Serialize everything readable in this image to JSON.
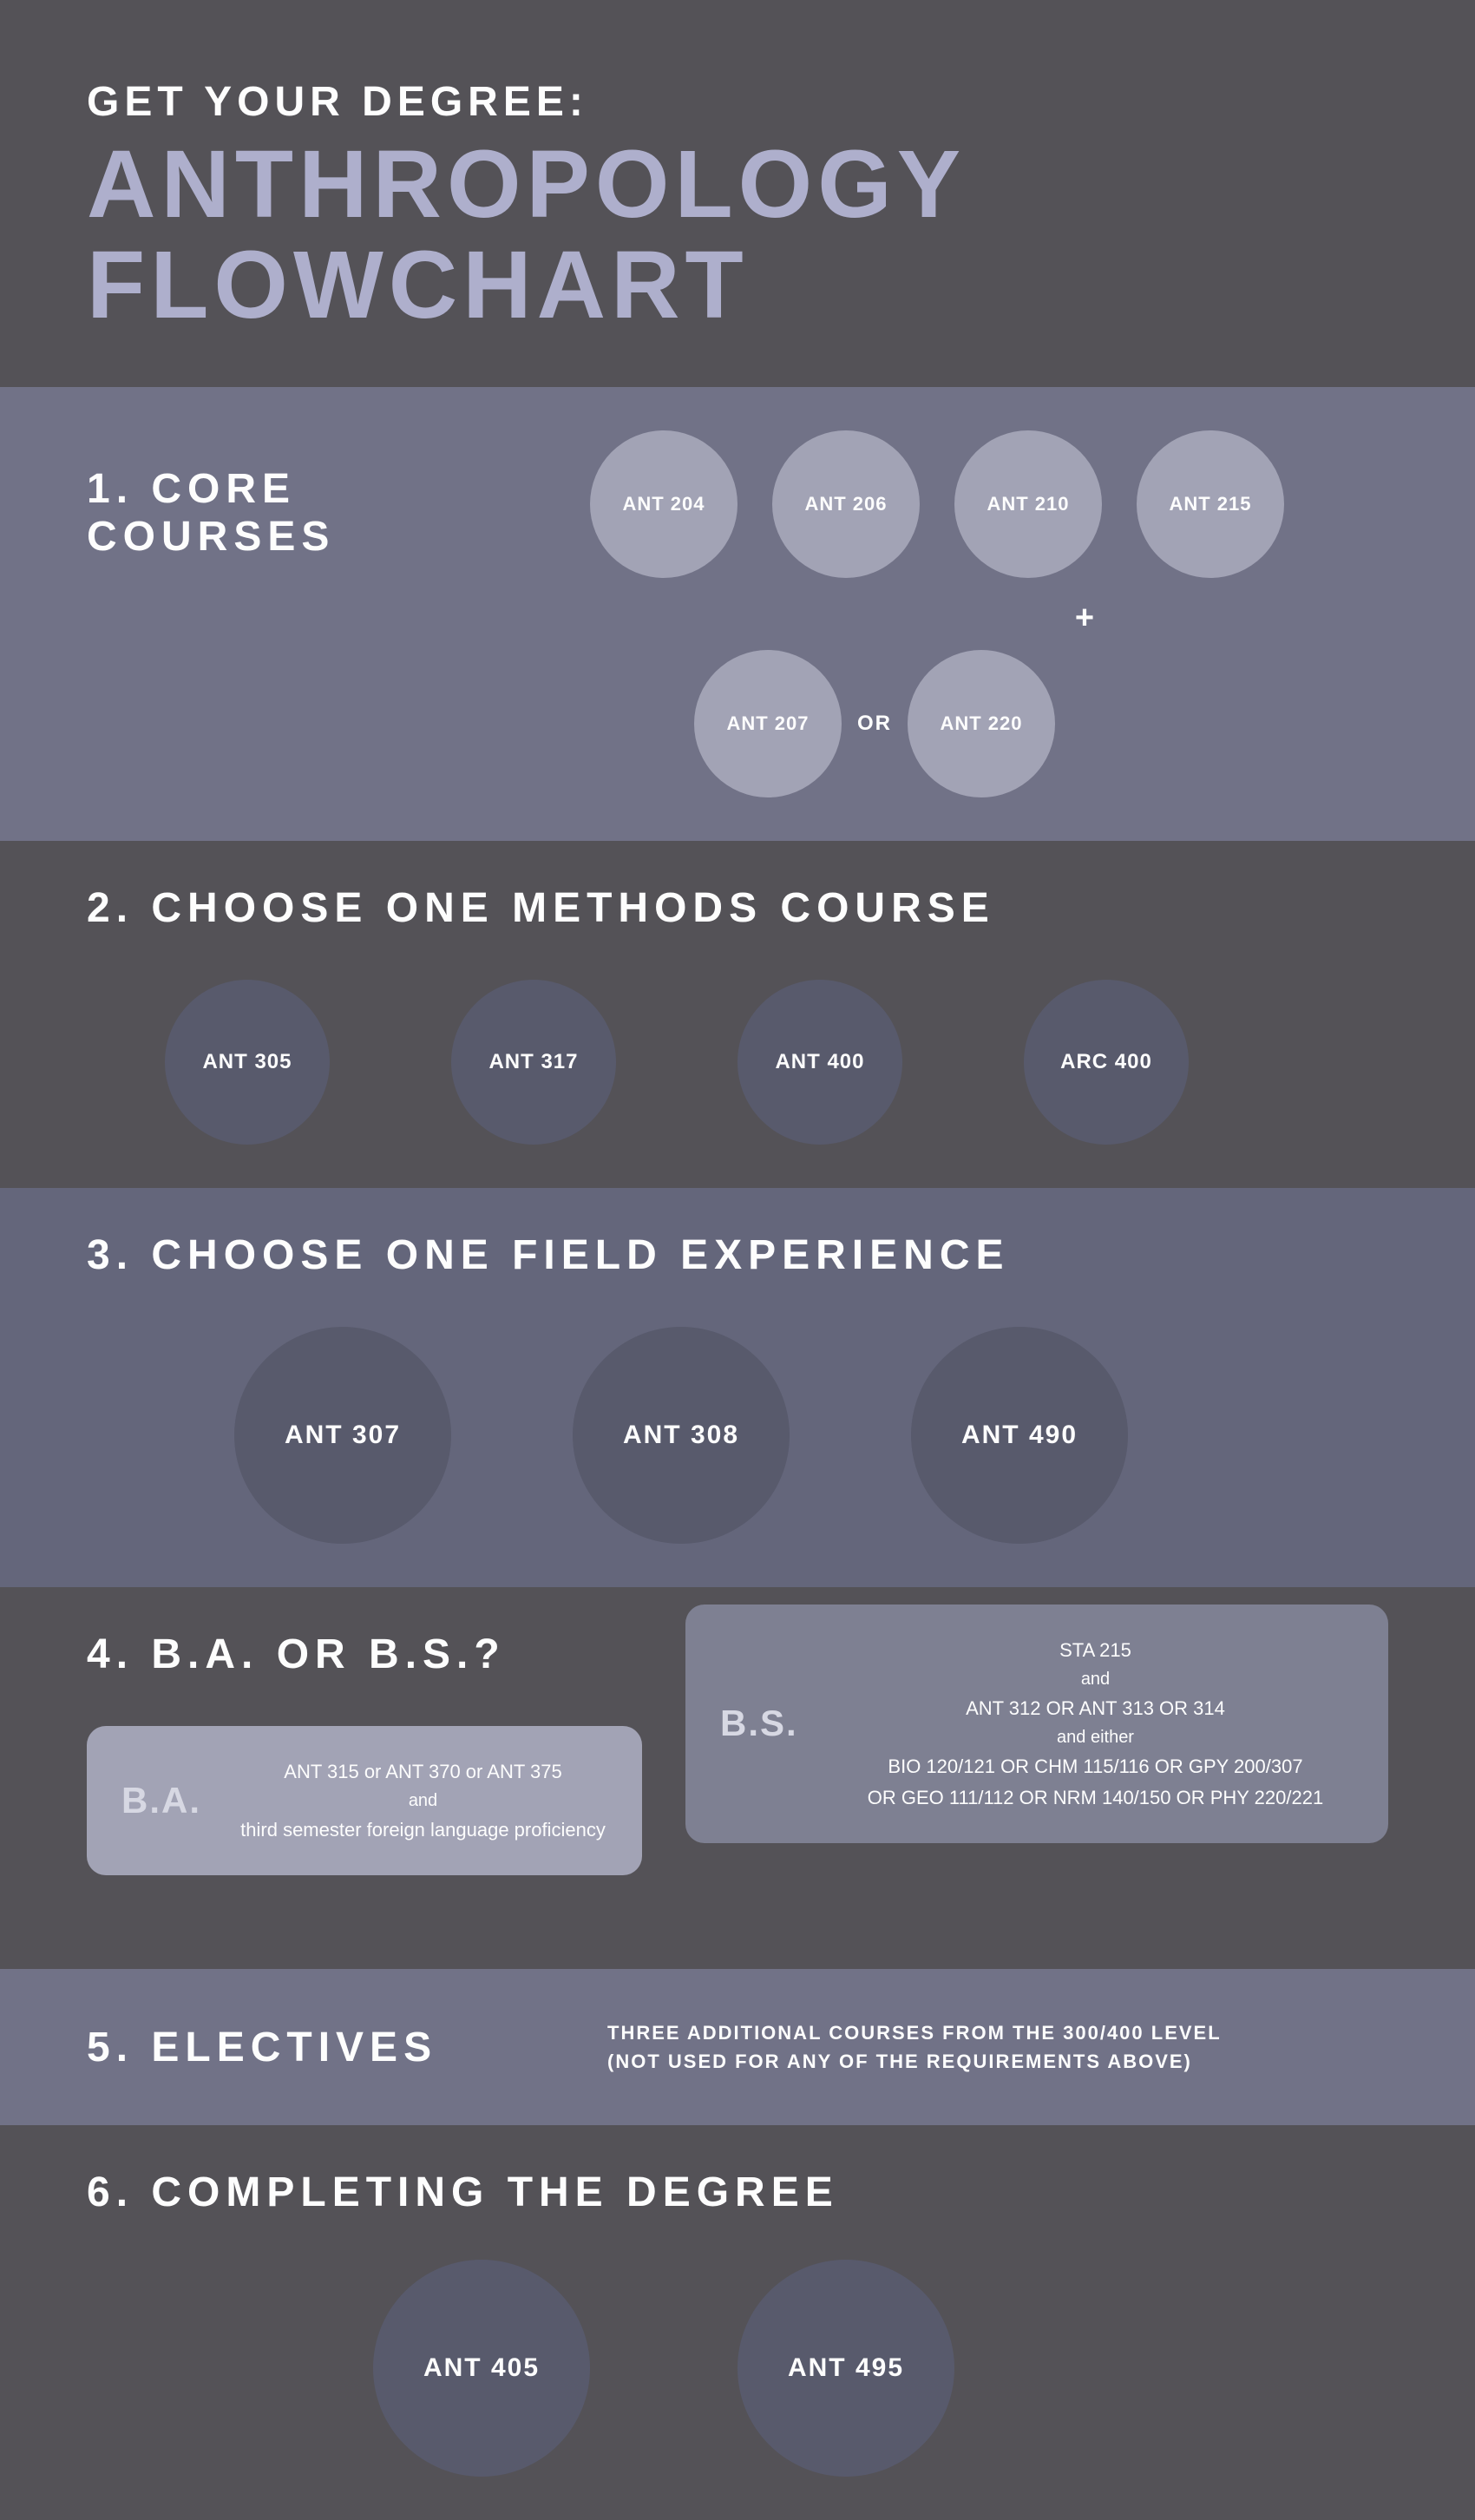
{
  "colors": {
    "page_bg": "#545257",
    "band_a": "#717287",
    "band_b": "#545257",
    "band_c": "#64667b",
    "circle_light": "#a2a3b5",
    "circle_dark": "#585a6c",
    "card_ba": "#a2a3b5",
    "card_bs": "#7e8092",
    "heading_white": "#fdfdfd",
    "title_lav": "#aeafcc"
  },
  "header": {
    "pretitle": "GET YOUR DEGREE:",
    "title_line1": "ANTHROPOLOGY",
    "title_line2": "FLOWCHART"
  },
  "s1": {
    "heading": "1. CORE COURSES",
    "core": [
      "ANT 204",
      "ANT 206",
      "ANT 210",
      "ANT 215"
    ],
    "plus": "+",
    "choice": [
      "ANT 207",
      "ANT 220"
    ],
    "or": "OR"
  },
  "s2": {
    "heading": "2. CHOOSE ONE METHODS COURSE",
    "courses": [
      "ANT 305",
      "ANT 317",
      "ANT 400",
      "ARC 400"
    ]
  },
  "s3": {
    "heading": "3. CHOOSE ONE FIELD EXPERIENCE",
    "courses": [
      "ANT 307",
      "ANT 308",
      "ANT 490"
    ]
  },
  "s4": {
    "heading": "4. B.A. OR B.S.?",
    "ba": {
      "label": "B.A.",
      "line1": "ANT 315 or ANT 370 or ANT 375",
      "and": "and",
      "line2": "third semester foreign language proficiency"
    },
    "bs": {
      "label": "B.S.",
      "line1": "STA 215",
      "and1": "and",
      "line2": "ANT 312 OR ANT 313 OR 314",
      "and2": "and either",
      "line3": "BIO 120/121 OR CHM 115/116 OR GPY 200/307",
      "line4": "OR GEO 111/112 OR NRM 140/150 OR PHY 220/221"
    }
  },
  "s5": {
    "heading": "5. ELECTIVES",
    "text_l1": "THREE ADDITIONAL COURSES FROM THE 300/400 LEVEL",
    "text_l2": "(NOT USED FOR ANY OF THE REQUIREMENTS ABOVE)"
  },
  "s6": {
    "heading": "6. COMPLETING THE DEGREE",
    "courses": [
      "ANT 405",
      "ANT 495"
    ]
  }
}
